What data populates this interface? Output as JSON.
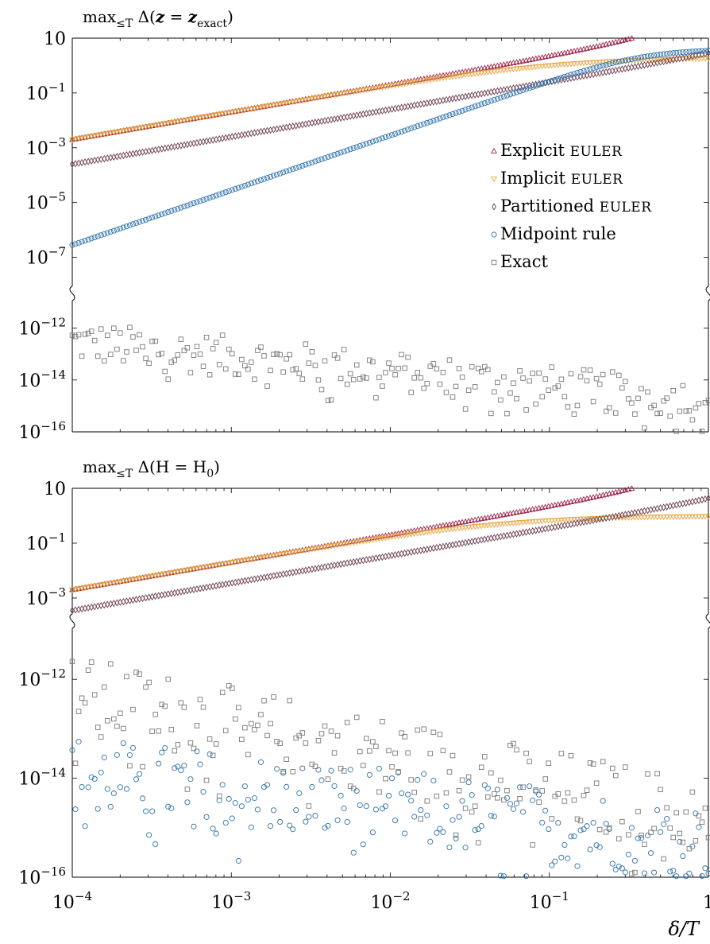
{
  "chart_data": [
    {
      "type": "scatter",
      "title": "max≤T Δ(z = zexact)",
      "title_parts": {
        "main": "max",
        "sub": "≤T",
        "rest": " Δ(",
        "bold": "z",
        "eq": " = ",
        "bold2": "z",
        "sub2": "exact",
        "close": ")"
      },
      "xscale": "log",
      "yscale": "log-broken",
      "xlim": [
        0.0001,
        1
      ],
      "ylim_upper": [
        1e-08,
        10
      ],
      "ylim_lower": [
        1e-16,
        1e-11
      ],
      "y_ticks": [
        "10",
        "10−1",
        "10−3",
        "10−5",
        "10−7",
        "10−12",
        "10−14",
        "10−16"
      ],
      "legend_position": "inside-right",
      "series": [
        {
          "name": "Explicit EULER",
          "name_main": "Explicit ",
          "name_caps": "Euler",
          "color": "#9d2449",
          "marker": "triangle-up",
          "power": 1,
          "coef": 20,
          "stop_at_y": 10
        },
        {
          "name": "Implicit EULER",
          "name_main": "Implicit ",
          "name_caps": "Euler",
          "color": "#e8a33d",
          "marker": "triangle-down",
          "power": 1,
          "coef": 20,
          "saturate": 2.0
        },
        {
          "name": "Partitioned EULER",
          "name_main": "Partitioned ",
          "name_caps": "Euler",
          "color": "#6b3d50",
          "marker": "diamond",
          "power": 1,
          "coef": 2.5,
          "stop_at_y": 10
        },
        {
          "name": "Midpoint rule",
          "name_main": "Midpoint rule",
          "name_caps": "",
          "color": "#2f73ad",
          "marker": "circle",
          "power": 2,
          "coef": 28,
          "saturate": 4.0
        },
        {
          "name": "Exact",
          "name_main": "Exact",
          "name_caps": "",
          "color": "#7a7a7a",
          "marker": "square",
          "noise_from": 3e-13,
          "noise_to": 1.5e-15
        }
      ]
    },
    {
      "type": "scatter",
      "title": "max≤T Δ(H = H0)",
      "title_parts": {
        "main": "max",
        "sub": "≤T",
        "rest": " Δ(H = H",
        "sub2": "0",
        "close": ")"
      },
      "xscale": "log",
      "yscale": "log-broken",
      "xlim": [
        0.0001,
        1
      ],
      "ylim_upper": [
        0.0003,
        10
      ],
      "ylim_lower": [
        1e-16,
        1e-11
      ],
      "y_ticks": [
        "10",
        "10−1",
        "10−3",
        "10−12",
        "10−14",
        "10−16"
      ],
      "x_ticks": [
        "10−4",
        "10−3",
        "10−2",
        "10−1",
        "1"
      ],
      "xlabel": "δ/T",
      "series": [
        {
          "name": "Explicit EULER",
          "color": "#9d2449",
          "marker": "triangle-up",
          "power": 1,
          "coef": 20,
          "stop_at_y": 10
        },
        {
          "name": "Implicit EULER",
          "color": "#e8a33d",
          "marker": "triangle-down",
          "power": 1,
          "coef": 20,
          "saturate": 1.0
        },
        {
          "name": "Partitioned EULER",
          "color": "#6b3d50",
          "marker": "diamond",
          "power": 1,
          "coef": 3.5,
          "stop_at_y": 10
        },
        {
          "name": "Midpoint rule",
          "color": "#2f73ad",
          "marker": "circle",
          "noise_from": 1.2e-14,
          "noise_to": 5e-16
        },
        {
          "name": "Exact",
          "color": "#7a7a7a",
          "marker": "square",
          "noise_from": 5e-13,
          "noise_to": 1.5e-15
        }
      ]
    }
  ]
}
